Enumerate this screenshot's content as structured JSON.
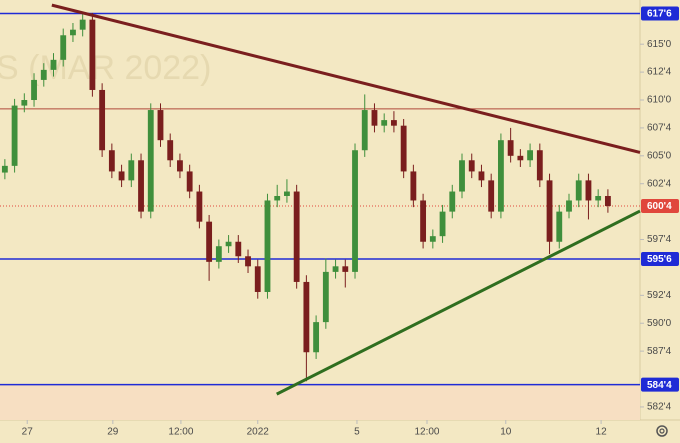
{
  "chart_data": {
    "type": "candlestick",
    "watermark": "S (MAR 2022)",
    "up_color": "#3f8f3c",
    "down_color": "#7a1e1e",
    "open": [
      603.5,
      604.1,
      609.5,
      610.0,
      611.8,
      612.7,
      613.6,
      615.8,
      616.3,
      617.2,
      610.9,
      605.5,
      603.6,
      602.8,
      604.6,
      600.0,
      609.1,
      606.4,
      604.6,
      603.6,
      601.8,
      599.1,
      595.5,
      596.9,
      597.3,
      596.0,
      595.1,
      592.8,
      601.0,
      601.4,
      601.8,
      593.7,
      587.4,
      590.1,
      594.6,
      595.1,
      594.6,
      605.5,
      609.1,
      607.7,
      608.2,
      607.7,
      603.6,
      601.0,
      597.3,
      597.8,
      600.0,
      601.8,
      604.6,
      603.6,
      602.8,
      600.0,
      606.4,
      605.0,
      604.6,
      605.5,
      602.8,
      597.3,
      600.0,
      601.0,
      602.8,
      601.0,
      601.4
    ],
    "high": [
      604.7,
      610.1,
      610.6,
      612.4,
      613.3,
      614.2,
      616.4,
      616.9,
      617.8,
      617.8,
      611.5,
      606.1,
      604.2,
      605.2,
      605.2,
      609.7,
      609.7,
      607.0,
      605.2,
      604.2,
      602.4,
      599.7,
      597.5,
      597.9,
      597.9,
      596.6,
      595.7,
      601.6,
      602.4,
      602.9,
      602.4,
      594.3,
      590.7,
      595.8,
      595.7,
      595.7,
      606.1,
      610.5,
      609.7,
      608.8,
      609.0,
      608.3,
      604.2,
      601.6,
      598.4,
      600.6,
      602.4,
      605.2,
      605.2,
      604.2,
      603.4,
      607.0,
      607.5,
      605.6,
      606.1,
      606.1,
      603.4,
      600.6,
      601.6,
      603.4,
      603.4,
      602.0,
      602.0
    ],
    "low": [
      602.9,
      603.5,
      608.9,
      609.4,
      611.2,
      612.1,
      613.0,
      615.2,
      615.7,
      610.3,
      604.9,
      603.0,
      602.2,
      602.2,
      599.4,
      599.4,
      605.8,
      604.0,
      603.0,
      601.2,
      598.5,
      593.8,
      594.9,
      596.3,
      595.4,
      594.5,
      592.2,
      592.2,
      600.4,
      600.8,
      593.1,
      584.8,
      586.8,
      589.5,
      594.0,
      593.2,
      594.0,
      604.9,
      607.1,
      607.1,
      607.1,
      603.0,
      600.4,
      596.7,
      596.7,
      597.2,
      599.4,
      601.2,
      603.0,
      602.2,
      599.4,
      599.4,
      604.4,
      604.0,
      604.0,
      602.2,
      596.2,
      596.7,
      599.4,
      600.4,
      599.3,
      600.4,
      599.9
    ],
    "close": [
      604.1,
      609.5,
      610.0,
      611.8,
      612.7,
      613.6,
      615.8,
      616.3,
      617.2,
      610.9,
      605.5,
      603.6,
      602.8,
      604.6,
      600.0,
      609.1,
      606.4,
      604.6,
      603.6,
      601.8,
      599.1,
      595.5,
      596.9,
      597.3,
      596.0,
      595.1,
      592.8,
      601.0,
      601.4,
      601.8,
      593.7,
      587.4,
      590.1,
      594.6,
      595.1,
      594.6,
      605.5,
      609.1,
      607.7,
      608.2,
      607.7,
      603.6,
      601.0,
      597.3,
      597.8,
      600.0,
      601.8,
      604.6,
      603.6,
      602.8,
      600.0,
      606.4,
      605.0,
      604.6,
      605.5,
      602.8,
      597.3,
      600.0,
      601.0,
      602.8,
      601.0,
      601.4,
      600.5
    ],
    "xlim": [
      -0.5,
      65.3
    ],
    "ylim": [
      581.33,
      618.96
    ],
    "xticks": [
      {
        "value": 2.3,
        "label": "27"
      },
      {
        "value": 11.1,
        "label": "29"
      },
      {
        "value": 18.1,
        "label": "12:00"
      },
      {
        "value": 26.0,
        "label": "2022"
      },
      {
        "value": 36.2,
        "label": "5"
      },
      {
        "value": 43.4,
        "label": "12:00"
      },
      {
        "value": 51.5,
        "label": "10"
      },
      {
        "value": 61.3,
        "label": "12"
      }
    ],
    "yticks": [
      {
        "value": 615,
        "label": "615'0"
      },
      {
        "value": 612.5,
        "label": "612'4"
      },
      {
        "value": 610,
        "label": "610'0"
      },
      {
        "value": 607.5,
        "label": "607'4"
      },
      {
        "value": 605,
        "label": "605'0"
      },
      {
        "value": 602.5,
        "label": "602'4"
      },
      {
        "value": 597.5,
        "label": "597'4"
      },
      {
        "value": 592.5,
        "label": "592'4"
      },
      {
        "value": 590,
        "label": "590'0"
      },
      {
        "value": 587.5,
        "label": "587'4"
      },
      {
        "value": 582.5,
        "label": "582'4"
      }
    ],
    "levels": [
      {
        "value": 617.75,
        "label": "617'6",
        "color": "#1f2bd6"
      },
      {
        "value": 600.5,
        "label": "600'4",
        "color": "#e0473c",
        "dash": true
      },
      {
        "value": 595.75,
        "label": "595'6",
        "color": "#1f2bd6"
      },
      {
        "value": 584.5,
        "label": "584'4",
        "color": "#1f2bd6"
      }
    ],
    "hlines": [
      {
        "value": 609.2,
        "color": "#b0493a"
      }
    ],
    "trendlines": [
      {
        "x": [
          4.83,
          65.3
        ],
        "y": [
          618.5,
          605.3
        ],
        "color": "#7a1e1e"
      },
      {
        "x": [
          27.95,
          65.3
        ],
        "y": [
          583.65,
          600.05
        ],
        "color": "#2f6e1f"
      }
    ]
  }
}
